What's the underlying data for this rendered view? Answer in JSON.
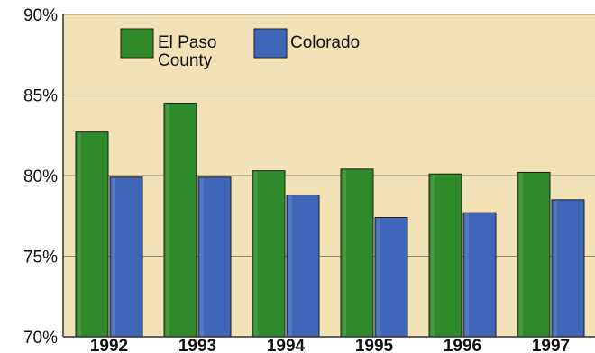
{
  "colors": {
    "plot_background": "#f2e2b5",
    "el_paso_county": "#2e8a2a",
    "colorado": "#3f66b8",
    "gridline": "#8a8a73",
    "axis": "#333333"
  },
  "chart_data": {
    "type": "bar",
    "title": "",
    "xlabel": "",
    "ylabel": "",
    "categories": [
      "1992",
      "1993",
      "1994",
      "1995",
      "1996",
      "1997"
    ],
    "series": [
      {
        "name": "El Paso County",
        "legend_lines": [
          "El Paso",
          "County"
        ],
        "color": "#2e8a2a",
        "values": [
          82.7,
          84.5,
          80.3,
          80.4,
          80.1,
          80.2
        ]
      },
      {
        "name": "Colorado",
        "legend_lines": [
          "Colorado"
        ],
        "color": "#3f66b8",
        "values": [
          79.9,
          79.9,
          78.8,
          77.4,
          77.7,
          78.5
        ]
      }
    ],
    "ylim": [
      70,
      90
    ],
    "yticks": [
      70,
      75,
      80,
      85,
      90
    ],
    "ytick_labels": [
      "70%",
      "75%",
      "80%",
      "85%",
      "90%"
    ],
    "grid": true,
    "legend_position": "top-left"
  }
}
